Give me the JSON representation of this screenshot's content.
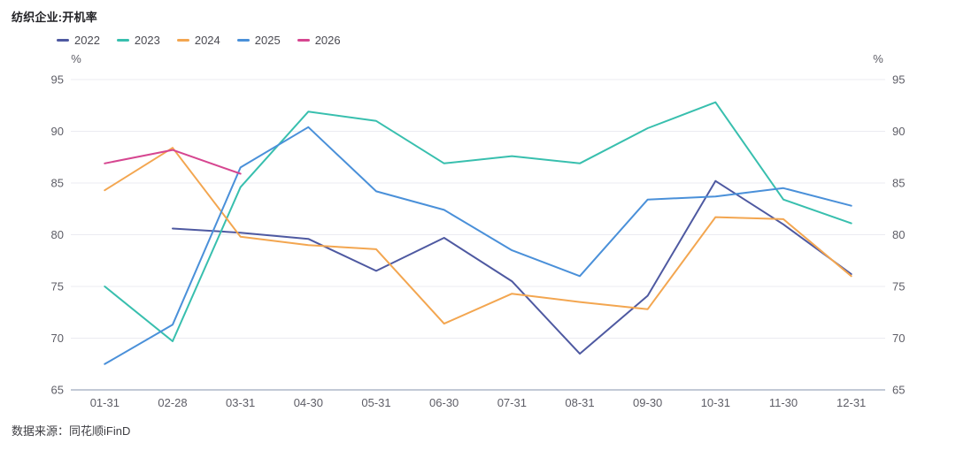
{
  "title": "纺织企业:开机率",
  "source": "数据来源：同花顺iFinD",
  "chart_data": {
    "type": "line",
    "title": "纺织企业:开机率",
    "x_categories": [
      "01-31",
      "02-28",
      "03-31",
      "04-30",
      "05-31",
      "06-30",
      "07-31",
      "08-31",
      "09-30",
      "10-31",
      "11-30",
      "12-31"
    ],
    "y_axis": {
      "unit": "%",
      "min": 65,
      "max": 95,
      "ticks": [
        65,
        70,
        75,
        80,
        85,
        90,
        95
      ],
      "dual_axis": true
    },
    "grid": true,
    "legend_position": "top-left",
    "series": [
      {
        "name": "2022",
        "color": "#4E59A1",
        "values": [
          null,
          80.6,
          80.2,
          79.6,
          76.5,
          79.7,
          75.5,
          68.5,
          74.1,
          85.2,
          81.0,
          76.2
        ]
      },
      {
        "name": "2023",
        "color": "#38BFAE",
        "values": [
          75.0,
          69.7,
          84.6,
          91.9,
          91.0,
          86.9,
          87.6,
          86.9,
          90.3,
          92.8,
          83.4,
          81.1
        ]
      },
      {
        "name": "2024",
        "color": "#F3A650",
        "values": [
          84.3,
          88.4,
          79.8,
          79.0,
          78.6,
          71.4,
          74.3,
          73.5,
          72.8,
          81.7,
          81.5,
          76.0
        ]
      },
      {
        "name": "2025",
        "color": "#4A90D9",
        "values": [
          67.5,
          71.3,
          86.5,
          90.4,
          84.2,
          82.4,
          78.5,
          76.0,
          83.4,
          83.7,
          84.5,
          82.8
        ]
      },
      {
        "name": "2026",
        "color": "#D64690",
        "values": [
          86.9,
          88.2,
          85.9,
          null,
          null,
          null,
          null,
          null,
          null,
          null,
          null,
          null
        ]
      }
    ],
    "colors": {
      "gridline": "#EBEBF1",
      "baseline": "#ADB7C9",
      "axis_label": "#5D5D66"
    }
  }
}
